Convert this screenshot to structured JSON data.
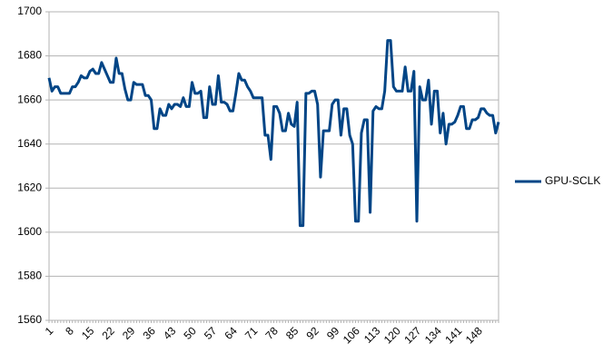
{
  "chart_data": {
    "type": "line",
    "categories": [
      "1",
      null,
      null,
      null,
      null,
      null,
      null,
      "8",
      null,
      null,
      null,
      null,
      null,
      null,
      "15",
      null,
      null,
      null,
      null,
      null,
      null,
      "22",
      null,
      null,
      null,
      null,
      null,
      null,
      "29",
      null,
      null,
      null,
      null,
      null,
      null,
      "36",
      null,
      null,
      null,
      null,
      null,
      null,
      "43",
      null,
      null,
      null,
      null,
      null,
      null,
      "50",
      null,
      null,
      null,
      null,
      null,
      null,
      "57",
      null,
      null,
      null,
      null,
      null,
      null,
      "64",
      null,
      null,
      null,
      null,
      null,
      null,
      "71",
      null,
      null,
      null,
      null,
      null,
      null,
      "78",
      null,
      null,
      null,
      null,
      null,
      null,
      "85",
      null,
      null,
      null,
      null,
      null,
      null,
      "92",
      null,
      null,
      null,
      null,
      null,
      null,
      "99",
      null,
      null,
      null,
      null,
      null,
      null,
      "106",
      null,
      null,
      null,
      null,
      null,
      null,
      "113",
      null,
      null,
      null,
      null,
      null,
      null,
      "120",
      null,
      null,
      null,
      null,
      null,
      null,
      "127",
      null,
      null,
      null,
      null,
      null,
      null,
      "134",
      null,
      null,
      null,
      null,
      null,
      null,
      "141",
      null,
      null,
      null,
      null,
      null,
      null,
      "148",
      null,
      null,
      null,
      null,
      null,
      null,
      null
    ],
    "series": [
      {
        "name": "GPU-SCLK",
        "color": "#004586",
        "values": [
          1670,
          1664,
          1666,
          1666,
          1663,
          1663,
          1663,
          1663,
          1666,
          1666,
          1668,
          1671,
          1670,
          1670,
          1673,
          1674,
          1672,
          1672,
          1677,
          1674,
          1671,
          1668,
          1668,
          1679,
          1672,
          1672,
          1665,
          1660,
          1660,
          1668,
          1667,
          1667,
          1667,
          1662,
          1662,
          1660,
          1647,
          1647,
          1656,
          1653,
          1653,
          1658,
          1656,
          1658,
          1658,
          1657,
          1661,
          1657,
          1657,
          1668,
          1663,
          1663,
          1664,
          1652,
          1652,
          1666,
          1658,
          1658,
          1671,
          1659,
          1659,
          1658,
          1655,
          1655,
          1663,
          1672,
          1669,
          1669,
          1666,
          1664,
          1661,
          1661,
          1661,
          1661,
          1644,
          1644,
          1633,
          1657,
          1657,
          1654,
          1646,
          1646,
          1654,
          1649,
          1648,
          1659,
          1603,
          1603,
          1663,
          1663,
          1664,
          1664,
          1658,
          1625,
          1646,
          1646,
          1646,
          1658,
          1660,
          1660,
          1644,
          1656,
          1656,
          1644,
          1640,
          1605,
          1605,
          1645,
          1651,
          1651,
          1609,
          1655,
          1657,
          1656,
          1656,
          1664,
          1687,
          1687,
          1666,
          1664,
          1664,
          1664,
          1675,
          1664,
          1664,
          1673,
          1605,
          1666,
          1660,
          1660,
          1669,
          1649,
          1664,
          1664,
          1645,
          1654,
          1640,
          1649,
          1649,
          1650,
          1653,
          1657,
          1657,
          1647,
          1647,
          1651,
          1651,
          1652,
          1656,
          1656,
          1654,
          1653,
          1653,
          1645,
          1650
        ]
      }
    ],
    "ylim": [
      1560,
      1700
    ],
    "yticks": [
      1560,
      1580,
      1600,
      1620,
      1640,
      1660,
      1680,
      1700
    ],
    "grid": true
  }
}
